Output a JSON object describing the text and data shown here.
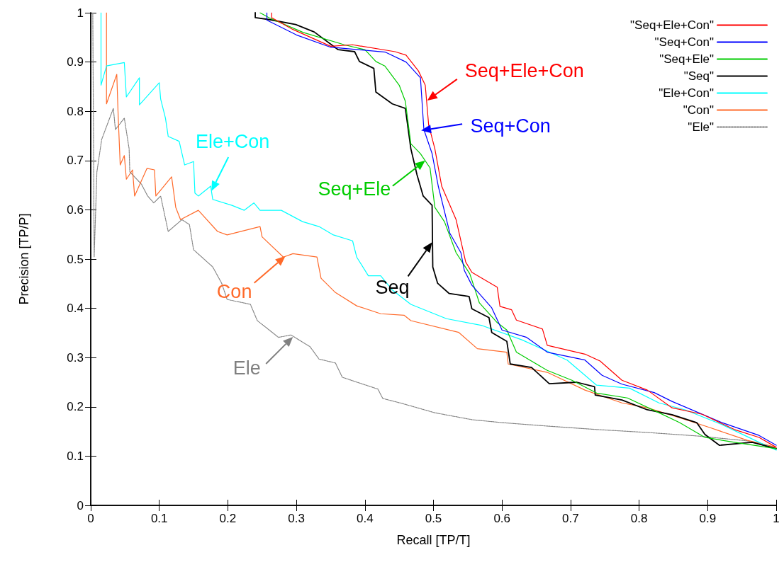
{
  "chart_data": {
    "type": "line",
    "xlabel": "Recall [TP/T]",
    "ylabel": "Precision [TP/P]",
    "xlim": [
      0,
      1
    ],
    "ylim": [
      0,
      1
    ],
    "xticks": [
      0,
      0.1,
      0.2,
      0.3,
      0.4,
      0.5,
      0.6,
      0.7,
      0.8,
      0.9,
      1
    ],
    "yticks": [
      0,
      0.1,
      0.2,
      0.3,
      0.4,
      0.5,
      0.6,
      0.7,
      0.8,
      0.9,
      1
    ],
    "grid": false,
    "legend": "top right",
    "marker": "none",
    "series": [
      {
        "name": "\"Seq+Ele+Con\"",
        "color": "#ff0000",
        "line_style": "solid",
        "x": [
          0.264,
          0.264,
          0.295,
          0.35,
          0.382,
          0.444,
          0.46,
          0.478,
          0.488,
          0.493,
          0.502,
          0.512,
          0.533,
          0.547,
          0.556,
          0.593,
          0.597,
          0.614,
          0.621,
          0.659,
          0.666,
          0.721,
          0.743,
          0.775,
          0.812,
          0.848,
          0.892,
          0.939,
          0.975,
          1.0
        ],
        "values": [
          1.0,
          0.99,
          0.966,
          0.932,
          0.935,
          0.921,
          0.914,
          0.882,
          0.853,
          0.772,
          0.724,
          0.648,
          0.58,
          0.494,
          0.473,
          0.443,
          0.404,
          0.397,
          0.376,
          0.358,
          0.325,
          0.307,
          0.293,
          0.254,
          0.234,
          0.198,
          0.185,
          0.154,
          0.138,
          0.118
        ]
      },
      {
        "name": "\"Seq+Con\"",
        "color": "#0000ff",
        "line_style": "solid",
        "x": [
          0.257,
          0.257,
          0.3,
          0.35,
          0.43,
          0.46,
          0.481,
          0.486,
          0.498,
          0.507,
          0.524,
          0.54,
          0.545,
          0.556,
          0.585,
          0.6,
          0.636,
          0.666,
          0.721,
          0.746,
          0.775,
          0.822,
          0.848,
          0.921,
          0.975,
          1.0
        ],
        "values": [
          1.0,
          0.985,
          0.955,
          0.93,
          0.92,
          0.9,
          0.868,
          0.763,
          0.714,
          0.648,
          0.552,
          0.513,
          0.477,
          0.447,
          0.401,
          0.356,
          0.341,
          0.311,
          0.295,
          0.264,
          0.246,
          0.229,
          0.211,
          0.168,
          0.142,
          0.122
        ]
      },
      {
        "name": "\"Seq+Ele\"",
        "color": "#00cc00",
        "line_style": "solid",
        "x": [
          0.247,
          0.26,
          0.31,
          0.37,
          0.4,
          0.416,
          0.429,
          0.45,
          0.459,
          0.467,
          0.481,
          0.495,
          0.502,
          0.516,
          0.533,
          0.553,
          0.567,
          0.593,
          0.607,
          0.621,
          0.666,
          0.702,
          0.738,
          0.783,
          0.829,
          0.859,
          0.896,
          0.939,
          1.0
        ],
        "values": [
          1.0,
          0.99,
          0.96,
          0.935,
          0.925,
          0.901,
          0.892,
          0.853,
          0.82,
          0.734,
          0.714,
          0.685,
          0.605,
          0.576,
          0.513,
          0.47,
          0.411,
          0.371,
          0.356,
          0.311,
          0.274,
          0.254,
          0.228,
          0.218,
          0.188,
          0.168,
          0.138,
          0.128,
          0.115
        ]
      },
      {
        "name": "\"Seq\"",
        "color": "#000000",
        "line_style": "solid",
        "x": [
          0.24,
          0.24,
          0.261,
          0.299,
          0.326,
          0.361,
          0.385,
          0.392,
          0.413,
          0.416,
          0.44,
          0.459,
          0.467,
          0.476,
          0.485,
          0.498,
          0.499,
          0.506,
          0.523,
          0.552,
          0.556,
          0.581,
          0.585,
          0.607,
          0.612,
          0.643,
          0.669,
          0.709,
          0.735,
          0.736,
          0.775,
          0.812,
          0.848,
          0.884,
          0.896,
          0.917,
          0.965,
          1.0
        ],
        "values": [
          1.0,
          0.99,
          0.986,
          0.976,
          0.961,
          0.925,
          0.921,
          0.901,
          0.887,
          0.839,
          0.815,
          0.806,
          0.724,
          0.671,
          0.628,
          0.609,
          0.484,
          0.451,
          0.43,
          0.424,
          0.399,
          0.381,
          0.351,
          0.333,
          0.287,
          0.28,
          0.247,
          0.25,
          0.241,
          0.224,
          0.214,
          0.194,
          0.184,
          0.168,
          0.144,
          0.122,
          0.128,
          0.115
        ]
      },
      {
        "name": "\"Ele+Con\"",
        "color": "#00ffff",
        "line_style": "solid",
        "x": [
          0.015,
          0.015,
          0.023,
          0.049,
          0.052,
          0.071,
          0.071,
          0.1,
          0.102,
          0.109,
          0.113,
          0.129,
          0.137,
          0.15,
          0.152,
          0.157,
          0.175,
          0.178,
          0.206,
          0.224,
          0.238,
          0.247,
          0.278,
          0.309,
          0.333,
          0.354,
          0.382,
          0.388,
          0.405,
          0.423,
          0.44,
          0.467,
          0.519,
          0.571,
          0.629,
          0.695,
          0.738,
          0.786,
          0.829,
          0.867,
          0.921,
          0.975,
          1.0
        ],
        "values": [
          1.0,
          0.853,
          0.892,
          0.899,
          0.829,
          0.868,
          0.813,
          0.858,
          0.825,
          0.786,
          0.749,
          0.739,
          0.691,
          0.698,
          0.634,
          0.628,
          0.648,
          0.621,
          0.609,
          0.599,
          0.614,
          0.599,
          0.599,
          0.576,
          0.566,
          0.549,
          0.537,
          0.504,
          0.466,
          0.466,
          0.437,
          0.408,
          0.379,
          0.365,
          0.336,
          0.295,
          0.244,
          0.238,
          0.208,
          0.194,
          0.164,
          0.128,
          0.112
        ]
      },
      {
        "name": "\"Con\"",
        "color": "#ff6a2a",
        "line_style": "solid",
        "x": [
          0.023,
          0.023,
          0.038,
          0.04,
          0.043,
          0.049,
          0.052,
          0.061,
          0.064,
          0.082,
          0.093,
          0.095,
          0.118,
          0.124,
          0.131,
          0.157,
          0.185,
          0.199,
          0.247,
          0.25,
          0.281,
          0.295,
          0.33,
          0.336,
          0.357,
          0.388,
          0.423,
          0.457,
          0.467,
          0.537,
          0.564,
          0.607,
          0.609,
          0.666,
          0.721,
          0.775,
          0.812,
          0.859,
          0.903,
          0.958,
          1.0
        ],
        "values": [
          1.0,
          0.815,
          0.875,
          0.792,
          0.691,
          0.71,
          0.662,
          0.681,
          0.628,
          0.684,
          0.681,
          0.628,
          0.667,
          0.605,
          0.58,
          0.599,
          0.556,
          0.549,
          0.566,
          0.545,
          0.504,
          0.511,
          0.504,
          0.461,
          0.432,
          0.405,
          0.389,
          0.386,
          0.375,
          0.351,
          0.318,
          0.311,
          0.287,
          0.27,
          0.234,
          0.208,
          0.198,
          0.178,
          0.158,
          0.132,
          0.118
        ]
      },
      {
        "name": "\"Ele\"",
        "color": "#808080",
        "line_style": "dotted",
        "x": [
          0.003,
          0.005,
          0.009,
          0.016,
          0.033,
          0.036,
          0.049,
          0.056,
          0.057,
          0.074,
          0.083,
          0.092,
          0.102,
          0.113,
          0.133,
          0.144,
          0.15,
          0.178,
          0.191,
          0.199,
          0.233,
          0.243,
          0.274,
          0.292,
          0.32,
          0.333,
          0.357,
          0.367,
          0.419,
          0.426,
          0.454,
          0.502,
          0.556,
          0.6,
          0.666,
          0.738,
          0.812,
          0.884,
          0.958,
          1.0
        ],
        "values": [
          1.0,
          0.504,
          0.677,
          0.743,
          0.806,
          0.763,
          0.786,
          0.724,
          0.677,
          0.652,
          0.628,
          0.614,
          0.628,
          0.556,
          0.58,
          0.57,
          0.519,
          0.484,
          0.451,
          0.418,
          0.408,
          0.375,
          0.341,
          0.346,
          0.322,
          0.297,
          0.289,
          0.26,
          0.236,
          0.217,
          0.207,
          0.188,
          0.174,
          0.168,
          0.161,
          0.154,
          0.148,
          0.141,
          0.131,
          0.115
        ]
      }
    ],
    "annotations": [
      {
        "text": "Seq+Ele+Con",
        "x": 0.491,
        "y": 0.822
      },
      {
        "text": "Seq+Con",
        "x": 0.482,
        "y": 0.761
      },
      {
        "text": "Seq+Ele",
        "x": 0.488,
        "y": 0.7
      },
      {
        "text": "Seq",
        "x": 0.498,
        "y": 0.534
      },
      {
        "text": "Ele+Con",
        "x": 0.176,
        "y": 0.638
      },
      {
        "text": "Con",
        "x": 0.284,
        "y": 0.506
      },
      {
        "text": "Ele",
        "x": 0.295,
        "y": 0.342
      }
    ]
  }
}
